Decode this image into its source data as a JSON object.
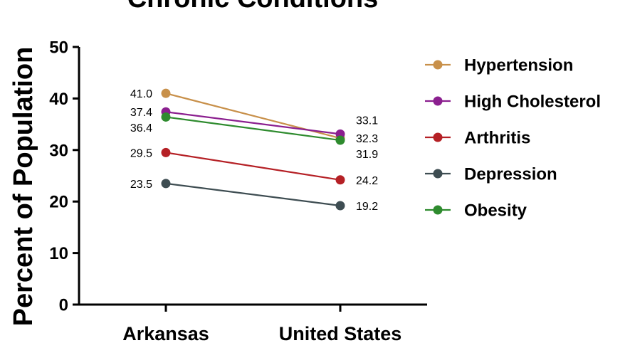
{
  "chart_data": {
    "type": "line",
    "title": "Chronic Conditions",
    "ylabel": "Percent of Population",
    "xlabel": "",
    "categories": [
      "Arkansas",
      "United States"
    ],
    "ylim": [
      0,
      50
    ],
    "yticks": [
      0,
      10,
      20,
      30,
      40,
      50
    ],
    "grid": false,
    "legend_position": "right",
    "series": [
      {
        "name": "Hypertension",
        "values": [
          41.0,
          32.3
        ],
        "labels": [
          "41.0",
          "32.3"
        ],
        "color": "#c8904a"
      },
      {
        "name": "High Cholesterol",
        "values": [
          37.4,
          33.1
        ],
        "labels": [
          "37.4",
          "33.1"
        ],
        "color": "#8b1f8f"
      },
      {
        "name": "Arthritis",
        "values": [
          29.5,
          24.2
        ],
        "labels": [
          "29.5",
          "24.2"
        ],
        "color": "#b52025"
      },
      {
        "name": "Depression",
        "values": [
          23.5,
          19.2
        ],
        "labels": [
          "23.5",
          "19.2"
        ],
        "color": "#3e4d52"
      },
      {
        "name": "Obesity",
        "values": [
          36.4,
          31.9
        ],
        "labels": [
          "36.4",
          "31.9"
        ],
        "color": "#2e8b2e"
      }
    ]
  }
}
